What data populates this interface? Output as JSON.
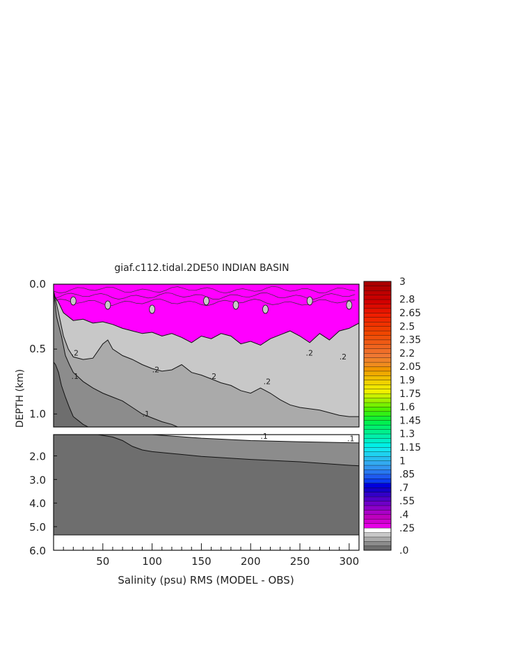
{
  "chart_data": {
    "type": "heatmap",
    "title": "giaf.c112.tidal.2DE50 INDIAN BASIN",
    "xlabel": "Salinity (psu) RMS (MODEL - OBS)",
    "ylabel": "DEPTH (km)",
    "xlim": [
      0,
      310
    ],
    "x_tick_labels": [
      "50",
      "100",
      "150",
      "200",
      "250",
      "300"
    ],
    "upper_panel": {
      "ylim": [
        0.0,
        1.1
      ],
      "y_tick_labels": [
        "0.0",
        "0.5",
        "1.0"
      ]
    },
    "lower_panel": {
      "ylim": [
        1.1,
        6.0
      ],
      "y_tick_labels": [
        "2.0",
        "3.0",
        "4.0",
        "5.0",
        "6.0"
      ]
    },
    "contour_labels": [
      ".2",
      ".2",
      ".2",
      ".2",
      ".2",
      ".2",
      ".1",
      ".1",
      ".1",
      ".1"
    ],
    "contours": [
      {
        "level": 0.25,
        "panel": "upper",
        "x": [
          0,
          5,
          10,
          20,
          30,
          40,
          50,
          60,
          70,
          80,
          90,
          100,
          110,
          120,
          130,
          140,
          150,
          160,
          170,
          180,
          190,
          200,
          210,
          220,
          230,
          240,
          250,
          260,
          270,
          280,
          290,
          300,
          310
        ],
        "y": [
          0.08,
          0.14,
          0.22,
          0.28,
          0.27,
          0.3,
          0.29,
          0.31,
          0.34,
          0.36,
          0.38,
          0.37,
          0.4,
          0.38,
          0.41,
          0.45,
          0.4,
          0.42,
          0.38,
          0.4,
          0.46,
          0.44,
          0.47,
          0.42,
          0.39,
          0.36,
          0.4,
          0.45,
          0.38,
          0.43,
          0.36,
          0.34,
          0.3
        ]
      },
      {
        "level": 0.2,
        "panel": "upper",
        "x": [
          0,
          5,
          10,
          15,
          20,
          30,
          40,
          50,
          55,
          60,
          70,
          80,
          90,
          100,
          110,
          120,
          130,
          140,
          150,
          160,
          170,
          180,
          190,
          200,
          210,
          220,
          230,
          240,
          250,
          260,
          270,
          280,
          290,
          300,
          310
        ],
        "y": [
          0.05,
          0.22,
          0.4,
          0.5,
          0.56,
          0.58,
          0.57,
          0.46,
          0.43,
          0.5,
          0.55,
          0.58,
          0.62,
          0.65,
          0.67,
          0.66,
          0.62,
          0.68,
          0.7,
          0.73,
          0.76,
          0.78,
          0.82,
          0.84,
          0.8,
          0.84,
          0.89,
          0.93,
          0.95,
          0.96,
          0.97,
          0.99,
          1.01,
          1.02,
          1.02
        ]
      },
      {
        "level": 0.1,
        "panel": "upper",
        "x": [
          0,
          3,
          8,
          12,
          16,
          20,
          30,
          40,
          50,
          60,
          70,
          80,
          90,
          100,
          110,
          120,
          126
        ],
        "y": [
          0.05,
          0.25,
          0.4,
          0.55,
          0.62,
          0.68,
          0.75,
          0.8,
          0.84,
          0.87,
          0.9,
          0.95,
          1.0,
          1.03,
          1.06,
          1.08,
          1.1
        ]
      },
      {
        "level": 0.05,
        "panel": "upper",
        "x": [
          0,
          2,
          5,
          8,
          12,
          16,
          20,
          25,
          30,
          35
        ],
        "y": [
          0.6,
          0.62,
          0.68,
          0.78,
          0.87,
          0.95,
          1.02,
          1.05,
          1.08,
          1.1
        ]
      },
      {
        "level": 0.1,
        "panel": "lower",
        "x": [
          0,
          50,
          100,
          150,
          200,
          250,
          310
        ],
        "y": [
          1.1,
          1.1,
          1.1,
          1.25,
          1.35,
          1.4,
          1.45
        ]
      },
      {
        "level": 0.05,
        "panel": "lower",
        "x": [
          0,
          45,
          60,
          70,
          80,
          90,
          100,
          120,
          150,
          200,
          250,
          300,
          310
        ],
        "y": [
          1.1,
          1.1,
          1.2,
          1.35,
          1.6,
          1.75,
          1.82,
          1.9,
          2.02,
          2.15,
          2.25,
          2.4,
          2.42
        ]
      }
    ],
    "colorbar": {
      "labels": [
        "3",
        "2.8",
        "2.65",
        "2.5",
        "2.35",
        "2.2",
        "2.05",
        "1.9",
        "1.75",
        "1.6",
        "1.45",
        "1.3",
        "1.15",
        "1",
        ".85",
        ".7",
        ".55",
        ".4",
        ".25",
        ".0"
      ],
      "levels": [
        0,
        0.05,
        0.1,
        0.15,
        0.2,
        0.25,
        0.3,
        0.35,
        0.4,
        0.45,
        0.5,
        0.55,
        0.6,
        0.65,
        0.7,
        0.75,
        0.8,
        0.85,
        0.9,
        0.95,
        1.0,
        1.05,
        1.1,
        1.15,
        1.2,
        1.25,
        1.3,
        1.35,
        1.4,
        1.45,
        1.5,
        1.55,
        1.6,
        1.65,
        1.7,
        1.75,
        1.8,
        1.85,
        1.9,
        1.95,
        2.0,
        2.05,
        2.1,
        2.15,
        2.2,
        2.25,
        2.3,
        2.35,
        2.4,
        2.45,
        2.5,
        2.55,
        2.6,
        2.65,
        2.7,
        2.75,
        2.8,
        2.85,
        2.9,
        2.95,
        3.0
      ],
      "colors": [
        "#6e6e6e",
        "#8c8c8c",
        "#aaaaaa",
        "#c8c8c8",
        "#ffffff",
        "#e600e6",
        "#d200d2",
        "#be00be",
        "#aa00c8",
        "#8c00c8",
        "#6e00c8",
        "#5000c8",
        "#3200c8",
        "#1400c8",
        "#0000dc",
        "#0a3cf0",
        "#1e5af0",
        "#2878f0",
        "#3296f0",
        "#32aaf0",
        "#28bef0",
        "#1ed2f0",
        "#14e6f0",
        "#00f0e6",
        "#00f0c8",
        "#00f0aa",
        "#00f08c",
        "#00f06e",
        "#00f050",
        "#14f032",
        "#32f014",
        "#50f000",
        "#78f000",
        "#a0f000",
        "#c8f000",
        "#f0f000",
        "#f0e600",
        "#f0d200",
        "#f0be00",
        "#f0aa00",
        "#f09600",
        "#f08c1e",
        "#f08228",
        "#f07832",
        "#f06e28",
        "#f0641e",
        "#f05a14",
        "#f0500a",
        "#f04600",
        "#f03c00",
        "#f03200",
        "#f02800",
        "#f01e00",
        "#e61400",
        "#dc0a00",
        "#d20000",
        "#c80000",
        "#be0000",
        "#b40000",
        "#aa0000"
      ]
    },
    "fill_colors": {
      "level_0": "#6e6e6e",
      "level_1": "#8c8c8c",
      "level_2": "#aaaaaa",
      "level_3": "#c8c8c8",
      "magenta": "#ff00ff"
    }
  }
}
